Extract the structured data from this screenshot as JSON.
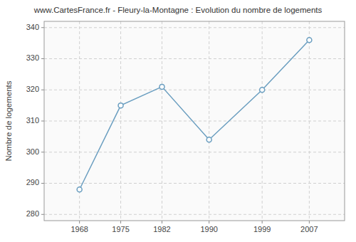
{
  "chart_data": {
    "type": "line",
    "title": "www.CartesFrance.fr - Fleury-la-Montagne : Evolution du nombre de logements",
    "ylabel": "Nombre de logements",
    "x": [
      1968,
      1975,
      1982,
      1990,
      1999,
      2007
    ],
    "values": [
      288,
      315,
      321,
      304,
      320,
      336
    ],
    "xlim": [
      1962,
      2013
    ],
    "xticks": [
      1968,
      1975,
      1982,
      1990,
      1999,
      2007
    ],
    "ylim": [
      278,
      342
    ],
    "yticks": [
      280,
      290,
      300,
      310,
      320,
      330,
      340
    ],
    "color": "#6a9ec0",
    "marker": "circle",
    "grid": true
  }
}
